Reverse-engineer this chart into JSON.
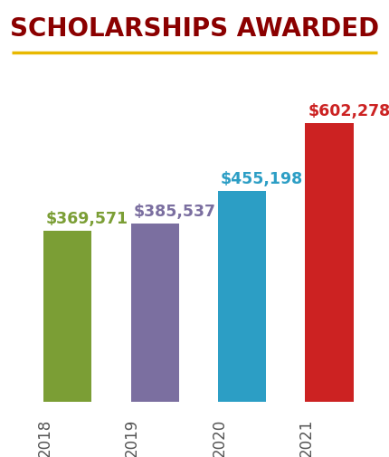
{
  "title": "SCHOLARSHIPS AWARDED",
  "title_color": "#8B0000",
  "title_fontsize": 20,
  "underline_color": "#E8B800",
  "categories": [
    "2018",
    "2019",
    "2020",
    "2021"
  ],
  "values": [
    369571,
    385537,
    455198,
    602278
  ],
  "bar_colors": [
    "#7B9E35",
    "#7B6FA0",
    "#2C9EC5",
    "#CC2222"
  ],
  "value_labels": [
    "$369,571",
    "$385,537",
    "$455,198",
    "$602,278"
  ],
  "label_colors": [
    "#7B9E35",
    "#7B6FA0",
    "#2C9EC5",
    "#CC2222"
  ],
  "background_color": "#ffffff",
  "ylim": [
    0,
    710000
  ],
  "label_fontsize": 12.5,
  "tick_fontsize": 12,
  "tick_color": "#555555"
}
